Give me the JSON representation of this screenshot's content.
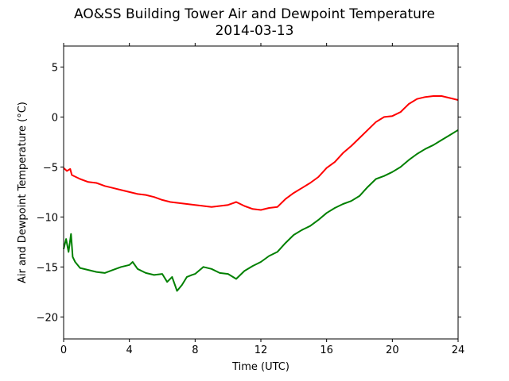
{
  "chart_data": {
    "type": "line",
    "title": "AO&SS Building Tower Air and Dewpoint Temperature",
    "subtitle": "2014-03-13",
    "xlabel": "Time (UTC)",
    "ylabel": "Air and Dewpoint Temperature (°C)",
    "xlim": [
      0,
      24
    ],
    "ylim": [
      -22.2,
      7.1
    ],
    "xticks": [
      0,
      4,
      8,
      12,
      16,
      20,
      24
    ],
    "yticks": [
      5,
      0,
      -5,
      -10,
      -15,
      -20
    ],
    "grid": false,
    "legend": "none",
    "series": [
      {
        "color": "#ff0000",
        "x": [
          0,
          0.2,
          0.4,
          0.5,
          1,
          1.5,
          2,
          2.5,
          3,
          3.5,
          4,
          4.5,
          5,
          5.5,
          6,
          6.5,
          7,
          7.5,
          8,
          8.5,
          9,
          9.5,
          10,
          10.5,
          11,
          11.5,
          12,
          12.5,
          13,
          13.5,
          14,
          14.5,
          15,
          15.5,
          16,
          16.5,
          17,
          17.5,
          18,
          18.5,
          19,
          19.5,
          20,
          20.5,
          21,
          21.5,
          22,
          22.5,
          23,
          23.5,
          24
        ],
        "y": [
          -5.1,
          -5.4,
          -5.2,
          -5.8,
          -6.2,
          -6.5,
          -6.6,
          -6.9,
          -7.1,
          -7.3,
          -7.5,
          -7.7,
          -7.8,
          -8.0,
          -8.3,
          -8.5,
          -8.6,
          -8.7,
          -8.8,
          -8.9,
          -9.0,
          -8.9,
          -8.8,
          -8.5,
          -8.9,
          -9.2,
          -9.3,
          -9.1,
          -9.0,
          -8.2,
          -7.6,
          -7.1,
          -6.6,
          -6.0,
          -5.1,
          -4.5,
          -3.6,
          -2.9,
          -2.1,
          -1.3,
          -0.5,
          0.0,
          0.1,
          0.5,
          1.3,
          1.8,
          2.0,
          2.1,
          2.1,
          1.9,
          1.7
        ]
      },
      {
        "color": "#008000",
        "x": [
          0,
          0.15,
          0.3,
          0.45,
          0.55,
          0.7,
          1,
          1.5,
          2,
          2.5,
          3,
          3.5,
          4,
          4.2,
          4.5,
          5,
          5.5,
          6,
          6.3,
          6.6,
          6.9,
          7.2,
          7.5,
          7.8,
          8,
          8.5,
          9,
          9.5,
          10,
          10.5,
          11,
          11.5,
          12,
          12.5,
          13,
          13.5,
          14,
          14.5,
          15,
          15.5,
          16,
          16.5,
          17,
          17.5,
          18,
          18.5,
          19,
          19.5,
          20,
          20.5,
          21,
          21.5,
          22,
          22.5,
          23,
          23.5,
          24
        ],
        "y": [
          -13.2,
          -12.2,
          -13.5,
          -11.7,
          -14.0,
          -14.5,
          -15.1,
          -15.3,
          -15.5,
          -15.6,
          -15.3,
          -15.0,
          -14.8,
          -14.5,
          -15.2,
          -15.6,
          -15.8,
          -15.7,
          -16.5,
          -16.0,
          -17.4,
          -16.8,
          -16.0,
          -15.8,
          -15.7,
          -15.0,
          -15.2,
          -15.6,
          -15.7,
          -16.2,
          -15.4,
          -14.9,
          -14.5,
          -13.9,
          -13.5,
          -12.6,
          -11.8,
          -11.3,
          -10.9,
          -10.3,
          -9.6,
          -9.1,
          -8.7,
          -8.4,
          -7.9,
          -7.0,
          -6.2,
          -5.9,
          -5.5,
          -5.0,
          -4.3,
          -3.7,
          -3.2,
          -2.8,
          -2.3,
          -1.8,
          -1.3
        ]
      }
    ]
  }
}
